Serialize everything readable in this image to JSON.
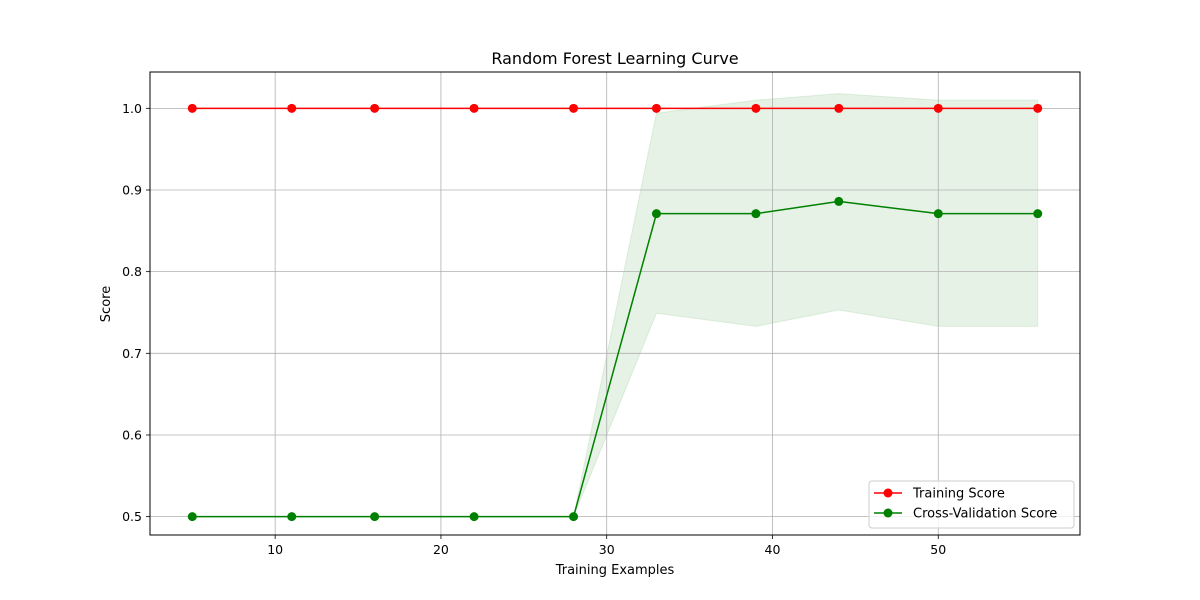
{
  "chart_data": {
    "type": "line",
    "title": "Random Forest Learning Curve",
    "xlabel": "Training Examples",
    "ylabel": "Score",
    "xlim": [
      2.45,
      58.55
    ],
    "ylim": [
      0.4775,
      1.0445
    ],
    "xticks": [
      10,
      20,
      30,
      40,
      50
    ],
    "yticks": [
      0.5,
      0.6,
      0.7,
      0.8,
      0.9,
      1.0
    ],
    "xtick_labels": [
      "10",
      "20",
      "30",
      "40",
      "50"
    ],
    "ytick_labels": [
      "0.5",
      "0.6",
      "0.7",
      "0.8",
      "0.9",
      "1.0"
    ],
    "grid": true,
    "legend_position": "lower-right",
    "x": [
      5,
      11,
      16,
      22,
      28,
      33,
      39,
      44,
      50,
      56
    ],
    "series": [
      {
        "name": "Training Score",
        "color": "#ff0000",
        "values": [
          1.0,
          1.0,
          1.0,
          1.0,
          1.0,
          1.0,
          1.0,
          1.0,
          1.0,
          1.0
        ],
        "band_lower": [
          1.0,
          1.0,
          1.0,
          1.0,
          1.0,
          1.0,
          1.0,
          1.0,
          1.0,
          1.0
        ],
        "band_upper": [
          1.0,
          1.0,
          1.0,
          1.0,
          1.0,
          1.0,
          1.0,
          1.0,
          1.0,
          1.0
        ]
      },
      {
        "name": "Cross-Validation Score",
        "color": "#008000",
        "values": [
          0.5,
          0.5,
          0.5,
          0.5,
          0.5,
          0.871,
          0.871,
          0.886,
          0.871,
          0.871
        ],
        "band_lower": [
          0.5,
          0.5,
          0.5,
          0.5,
          0.5,
          0.749,
          0.733,
          0.753,
          0.733,
          0.733
        ],
        "band_upper": [
          0.5,
          0.5,
          0.5,
          0.5,
          0.5,
          0.994,
          1.01,
          1.018,
          1.01,
          1.01
        ]
      }
    ]
  }
}
